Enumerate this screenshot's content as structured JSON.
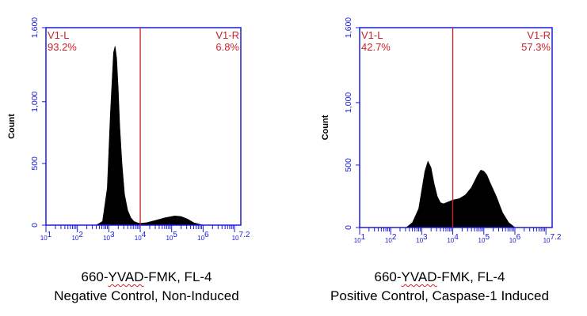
{
  "chart_data": [
    {
      "type": "area",
      "ylabel": "Count",
      "ylim": [
        0,
        1600
      ],
      "y_ticks": [
        "0",
        "500",
        "1,000",
        "1,600"
      ],
      "y_tick_values": [
        0,
        500,
        1000,
        1600
      ],
      "x_ticks": [
        "10^1",
        "10^2",
        "10^3",
        "10^4",
        "10^5",
        "10^6",
        "10^7.2"
      ],
      "x_tick_exponents": [
        1,
        2,
        3,
        4,
        5,
        6,
        7.2
      ],
      "xscale": "log",
      "gate_position_log10": 4,
      "gate_left": {
        "label": "V1-L",
        "percent": "93.2%"
      },
      "gate_right": {
        "label": "V1-R",
        "percent": "6.8%"
      },
      "caption": {
        "line1_prefix": "660-",
        "line1_underlined": "YVAD",
        "line1_suffix": "-FMK, FL-4",
        "line2": "Negative Control, Non-Induced"
      },
      "histogram": {
        "log10_x": [
          2.6,
          2.8,
          2.95,
          3.05,
          3.15,
          3.2,
          3.25,
          3.3,
          3.35,
          3.42,
          3.5,
          3.6,
          3.7,
          3.8,
          3.9,
          4.0,
          4.2,
          4.5,
          4.8,
          5.0,
          5.1,
          5.3,
          5.5,
          5.7,
          6.0
        ],
        "count": [
          0,
          30,
          300,
          900,
          1400,
          1450,
          1350,
          1100,
          800,
          500,
          250,
          120,
          60,
          30,
          20,
          15,
          20,
          40,
          60,
          70,
          75,
          70,
          50,
          20,
          0
        ]
      }
    },
    {
      "type": "area",
      "ylabel": "Count",
      "ylim": [
        0,
        1600
      ],
      "y_ticks": [
        "0",
        "500",
        "1,000",
        "1,600"
      ],
      "y_tick_values": [
        0,
        500,
        1000,
        1600
      ],
      "x_ticks": [
        "10^1",
        "10^2",
        "10^3",
        "10^4",
        "10^5",
        "10^6",
        "10^7.2"
      ],
      "x_tick_exponents": [
        1,
        2,
        3,
        4,
        5,
        6,
        7.2
      ],
      "xscale": "log",
      "gate_position_log10": 4,
      "gate_left": {
        "label": "V1-L",
        "percent": "42.7%"
      },
      "gate_right": {
        "label": "V1-R",
        "percent": "57.3%"
      },
      "caption": {
        "line1_prefix": "660-",
        "line1_underlined": "YVAD",
        "line1_suffix": "-FMK, FL-4",
        "line2": "Positive Control, Caspase-1 Induced"
      },
      "histogram": {
        "log10_x": [
          2.5,
          2.7,
          2.9,
          3.0,
          3.1,
          3.2,
          3.3,
          3.4,
          3.5,
          3.6,
          3.7,
          3.8,
          3.9,
          4.0,
          4.2,
          4.4,
          4.6,
          4.8,
          4.9,
          5.0,
          5.1,
          5.2,
          5.4,
          5.6,
          5.8,
          6.0
        ],
        "count": [
          0,
          40,
          150,
          300,
          450,
          530,
          480,
          350,
          250,
          200,
          190,
          200,
          210,
          220,
          230,
          260,
          320,
          420,
          460,
          450,
          420,
          360,
          250,
          120,
          40,
          0
        ]
      }
    }
  ],
  "colors": {
    "axis": "#1a1adb",
    "gate": "#cc1f2a",
    "fill": "#000000"
  }
}
